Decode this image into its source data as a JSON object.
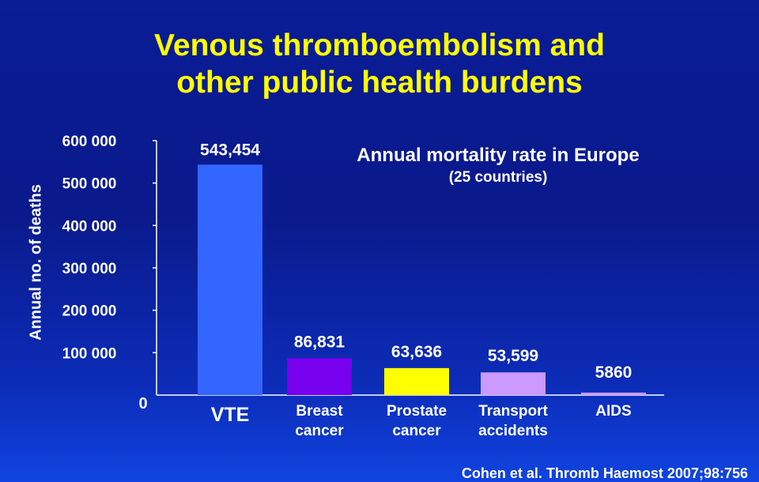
{
  "slide": {
    "title_line1": "Venous thromboembolism and",
    "title_line2": "other public health burdens",
    "subtitle": "Annual mortality rate in Europe",
    "subtitle_note": "(25  countries)",
    "citation": "Cohen et al. Thromb Haemost 2007;98:756"
  },
  "chart_data": {
    "type": "bar",
    "ylabel": "Annual no. of deaths",
    "xlabel": "",
    "ylim": [
      0,
      600000
    ],
    "yticks": [
      0,
      100000,
      200000,
      300000,
      400000,
      500000,
      600000
    ],
    "ytick_labels": [
      "0",
      "100 000",
      "200 000",
      "300 000",
      "400 000",
      "500 000",
      "600 000"
    ],
    "categories": [
      [
        "VTE"
      ],
      [
        "Breast",
        "cancer"
      ],
      [
        "Prostate",
        "cancer"
      ],
      [
        "Transport",
        "accidents"
      ],
      [
        "AIDS"
      ]
    ],
    "values": [
      543454,
      86831,
      63636,
      53599,
      5860
    ],
    "value_labels": [
      "543,454",
      "86,831",
      "63,636",
      "53,599",
      "5860"
    ],
    "colors": [
      "#3366ff",
      "#7700ee",
      "#ffff00",
      "#cc99ff",
      "#cc99ff"
    ],
    "grid": false
  }
}
